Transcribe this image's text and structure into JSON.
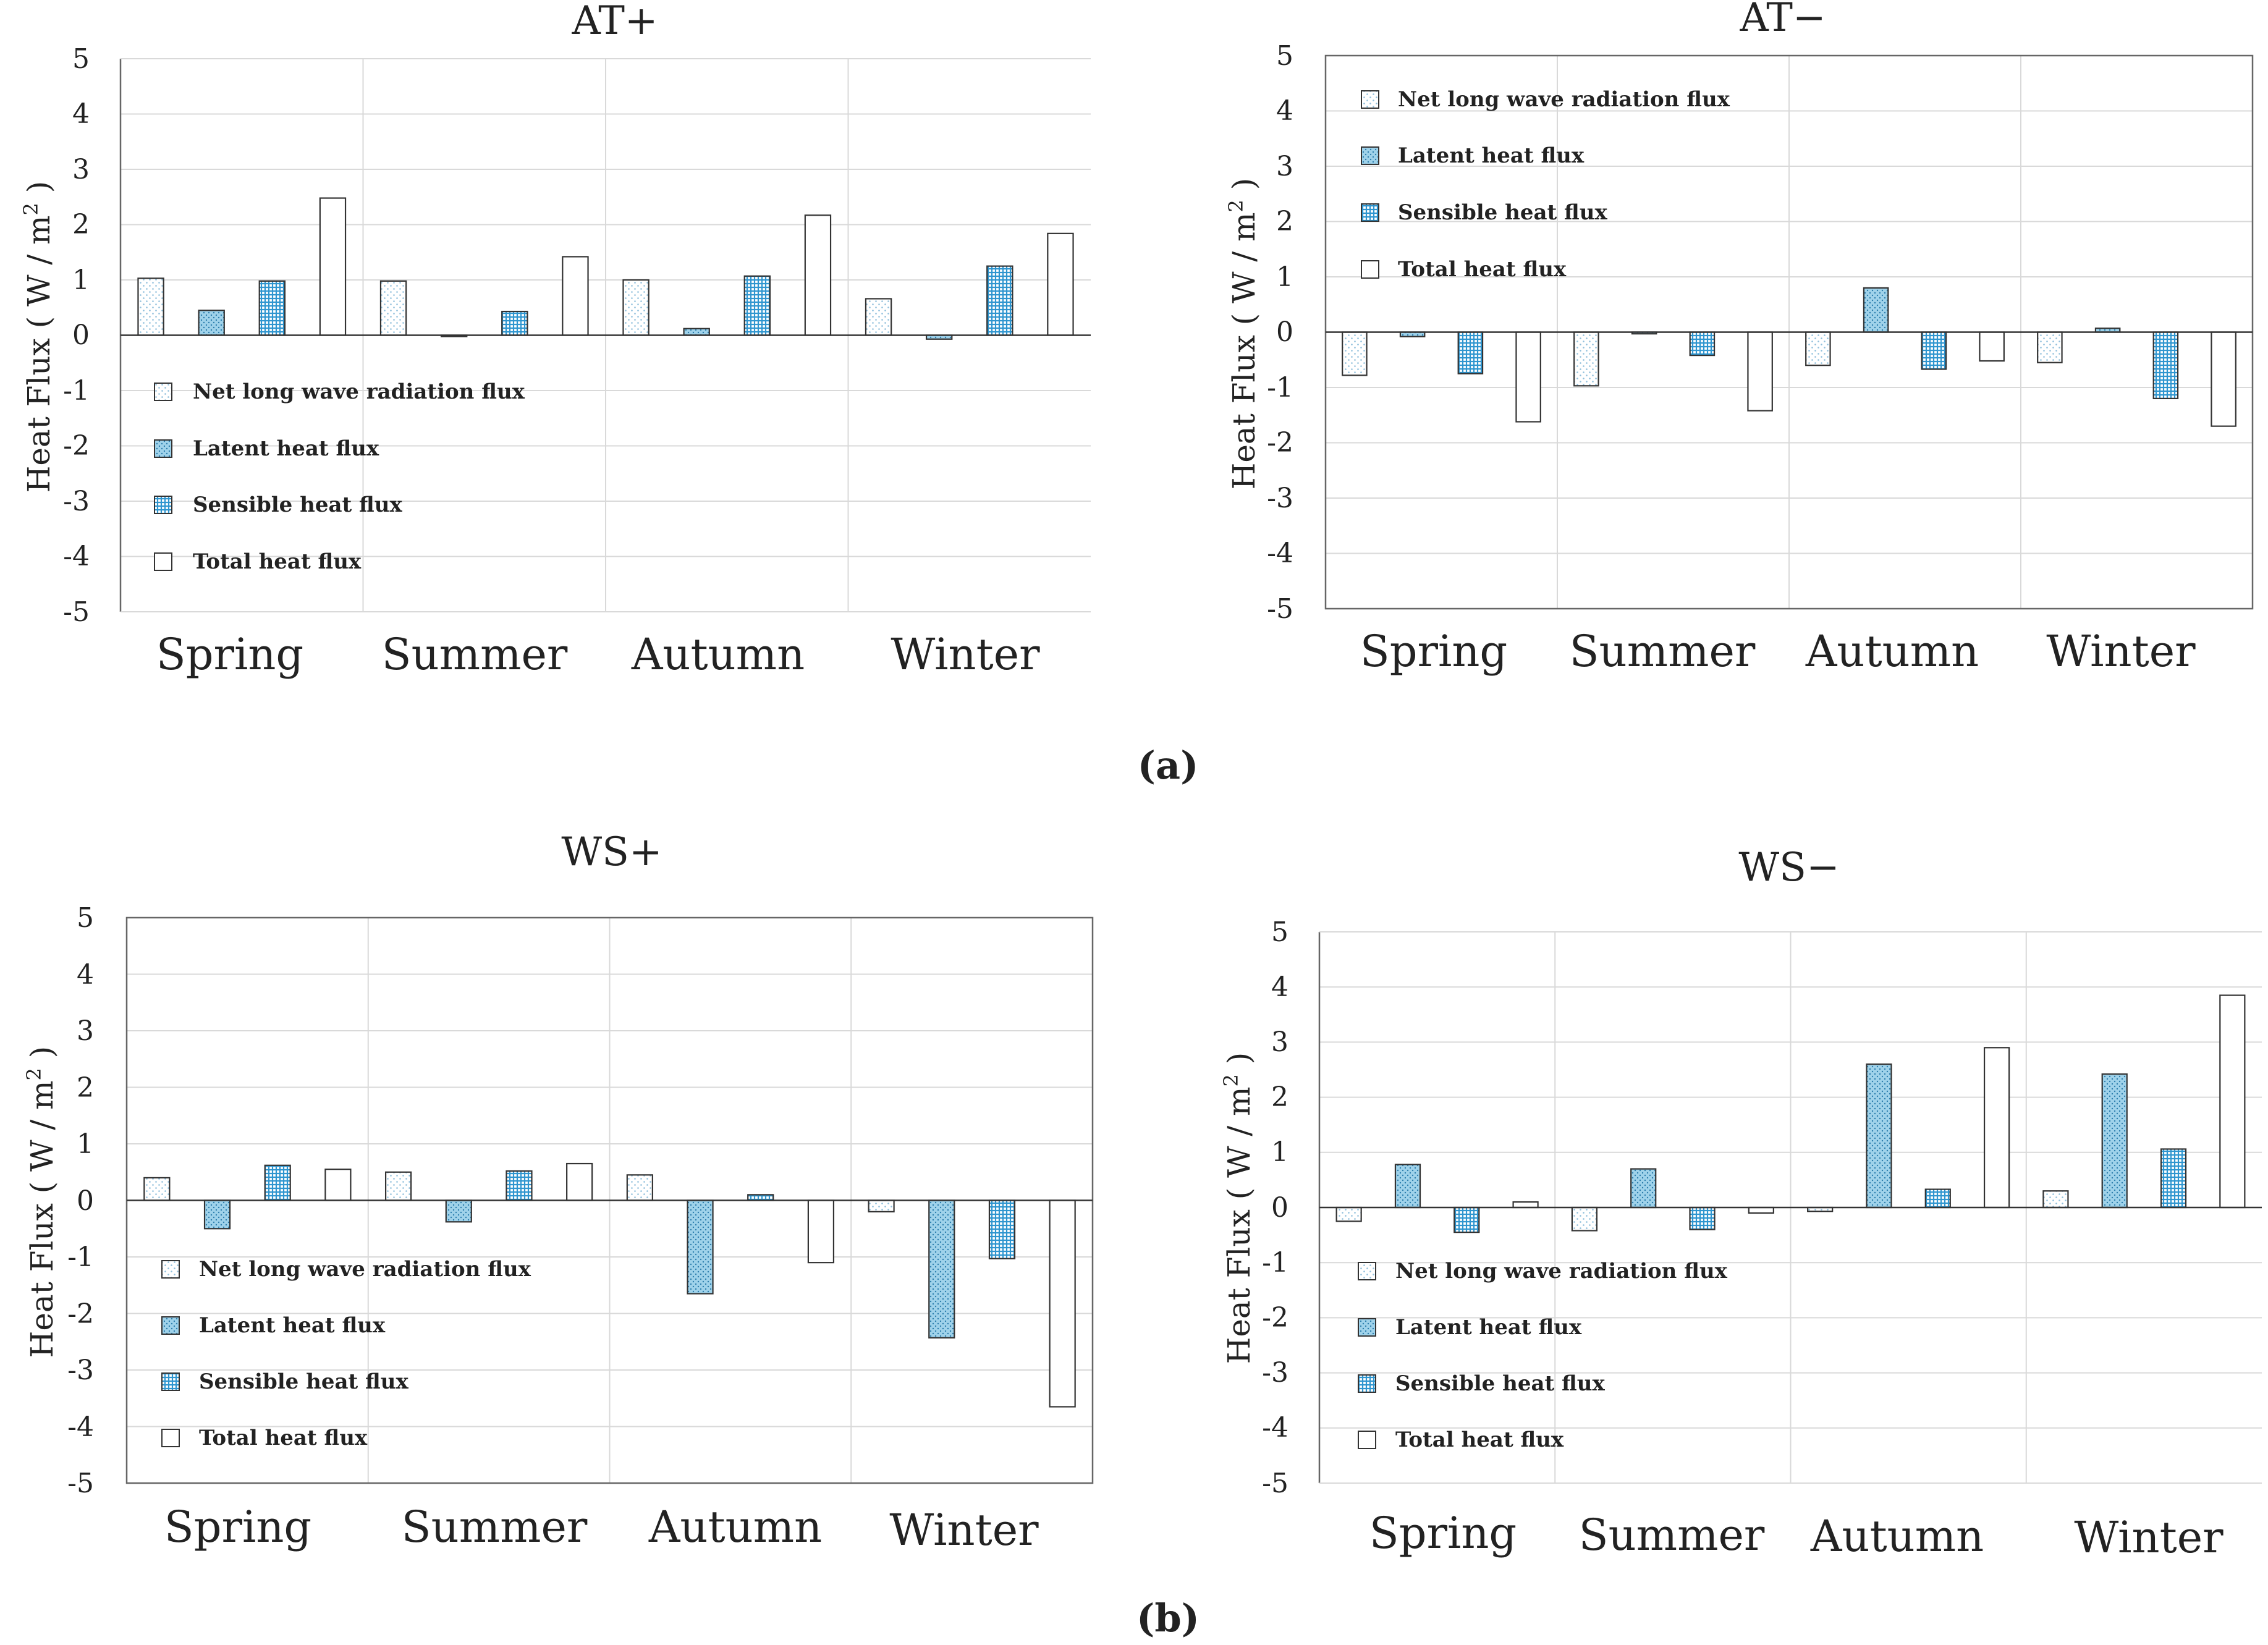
{
  "captions": [
    "(a)",
    "(b)"
  ],
  "colors": {
    "grid": "#d9d9d9",
    "axis": "#666666",
    "text": "#222222",
    "net_fill": "#ffffff",
    "net_dot": "#8fbfdc",
    "latent_fill": "#9fd2ea",
    "latent_dot": "#2e7fae",
    "sensible_fill": "#ffffff",
    "sensible_line": "#2e95cf",
    "total_fill": "#ffffff",
    "bar_stroke": "#333333"
  },
  "chart_data": [
    {
      "type": "bar",
      "title": "AT+",
      "caption": "(a)",
      "ylabel": "Heat Flux ( W / m2 )",
      "ylim": [
        -5,
        5
      ],
      "yticks": [
        5,
        4,
        3,
        2,
        1,
        0,
        -1,
        -2,
        -3,
        -4,
        -5
      ],
      "categories": [
        "Spring",
        "Summer",
        "Autumn",
        "Winter"
      ],
      "legend_position": "lower-left",
      "series": [
        {
          "name": "Net long wave radiation flux",
          "pattern": "net",
          "values": [
            1.03,
            0.98,
            1.0,
            0.66
          ]
        },
        {
          "name": "Latent heat flux",
          "pattern": "latent",
          "values": [
            0.45,
            0.0,
            0.12,
            -0.07
          ]
        },
        {
          "name": "Sensible heat flux",
          "pattern": "sensible",
          "values": [
            0.98,
            0.43,
            1.07,
            1.25
          ]
        },
        {
          "name": "Total heat flux",
          "pattern": "total",
          "values": [
            2.48,
            1.42,
            2.17,
            1.84
          ]
        }
      ]
    },
    {
      "type": "bar",
      "title": "AT−",
      "caption": "(a)",
      "ylabel": "Heat Flux ( W / m2 )",
      "ylim": [
        -5,
        5
      ],
      "yticks": [
        5,
        4,
        3,
        2,
        1,
        0,
        -1,
        -2,
        -3,
        -4,
        -5
      ],
      "categories": [
        "Spring",
        "Summer",
        "Autumn",
        "Winter"
      ],
      "legend_position": "upper-left",
      "series": [
        {
          "name": "Net long wave radiation flux",
          "pattern": "net",
          "values": [
            -0.78,
            -0.97,
            -0.6,
            -0.55
          ]
        },
        {
          "name": "Latent heat flux",
          "pattern": "latent",
          "values": [
            -0.08,
            -0.03,
            0.8,
            0.07
          ]
        },
        {
          "name": "Sensible heat flux",
          "pattern": "sensible",
          "values": [
            -0.75,
            -0.42,
            -0.67,
            -1.2
          ]
        },
        {
          "name": "Total heat flux",
          "pattern": "total",
          "values": [
            -1.62,
            -1.42,
            -0.52,
            -1.7
          ]
        }
      ]
    },
    {
      "type": "bar",
      "title": "WS+",
      "caption": "(b)",
      "ylabel": "Heat Flux ( W / m2 )",
      "ylim": [
        -5,
        5
      ],
      "yticks": [
        5,
        4,
        3,
        2,
        1,
        0,
        -1,
        -2,
        -3,
        -4,
        -5
      ],
      "categories": [
        "Spring",
        "Summer",
        "Autumn",
        "Winter"
      ],
      "legend_position": "lower-left",
      "series": [
        {
          "name": "Net long wave radiation flux",
          "pattern": "net",
          "values": [
            0.4,
            0.5,
            0.45,
            -0.2
          ]
        },
        {
          "name": "Latent heat flux",
          "pattern": "latent",
          "values": [
            -0.5,
            -0.38,
            -1.65,
            -2.43
          ]
        },
        {
          "name": "Sensible heat flux",
          "pattern": "sensible",
          "values": [
            0.62,
            0.52,
            0.1,
            -1.03
          ]
        },
        {
          "name": "Total heat flux",
          "pattern": "total",
          "values": [
            0.55,
            0.65,
            -1.1,
            -3.65
          ]
        }
      ]
    },
    {
      "type": "bar",
      "title": "WS−",
      "caption": "(b)",
      "ylabel": "Heat Flux ( W / m2 )",
      "ylim": [
        -5,
        5
      ],
      "yticks": [
        5,
        4,
        3,
        2,
        1,
        0,
        -1,
        -2,
        -3,
        -4,
        -5
      ],
      "categories": [
        "Spring",
        "Summer",
        "Autumn",
        "Winter"
      ],
      "legend_position": "lower-left",
      "series": [
        {
          "name": "Net long wave radiation flux",
          "pattern": "net",
          "values": [
            -0.25,
            -0.42,
            -0.07,
            0.3
          ]
        },
        {
          "name": "Latent heat flux",
          "pattern": "latent",
          "values": [
            0.78,
            0.7,
            2.6,
            2.42
          ]
        },
        {
          "name": "Sensible heat flux",
          "pattern": "sensible",
          "values": [
            -0.45,
            -0.4,
            0.33,
            1.06
          ]
        },
        {
          "name": "Total heat flux",
          "pattern": "total",
          "values": [
            0.1,
            -0.1,
            2.9,
            3.85
          ]
        }
      ]
    }
  ]
}
